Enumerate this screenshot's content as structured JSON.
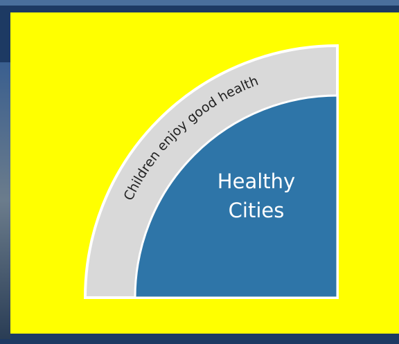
{
  "diagram": {
    "outer_label": "Children enjoy good health",
    "inner_label": [
      "Healthy",
      "Cities"
    ]
  }
}
